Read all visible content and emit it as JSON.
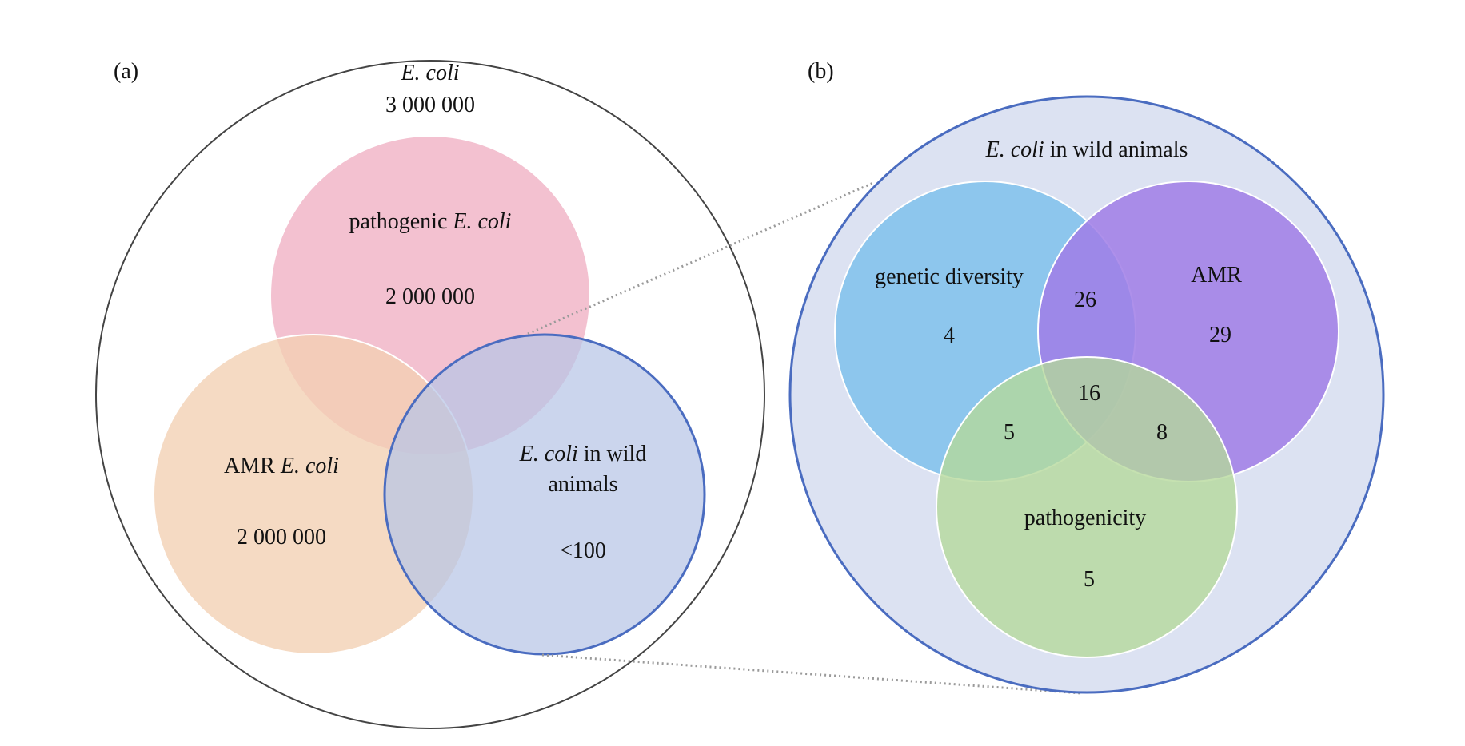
{
  "panel_a": {
    "panel_label": "(a)",
    "outer_title": "E. coli",
    "outer_count": "3 000 000",
    "pathogenic": {
      "label_pre": "pathogenic ",
      "label_it": "E. coli",
      "count": "2 000 000"
    },
    "amr": {
      "label_pre": "AMR ",
      "label_it": "E. coli",
      "count": "2 000 000"
    },
    "wild": {
      "label_it": "E. coli",
      "label_post": " in wild",
      "label_line2": "animals",
      "count": "<100"
    }
  },
  "panel_b": {
    "panel_label": "(b)",
    "title_it": "E. coli",
    "title_post": " in wild animals",
    "genetic_diversity": {
      "label": "genetic diversity",
      "count": "4"
    },
    "amr": {
      "label": "AMR",
      "count": "29"
    },
    "pathogenicity": {
      "label": "pathogenicity",
      "count": "5"
    },
    "gd_amr": "26",
    "all_three": "16",
    "gd_path": "5",
    "amr_path": "8"
  },
  "colors": {
    "pathogenic": "#F0B3C6",
    "amr_a": "#F2CFB2",
    "wild": "#C3CFE8",
    "wild_border": "#4A6CC0",
    "panel_b_bg": "#DCE2F2",
    "gd": "#7FC1EC",
    "amr_b": "#A07CE6",
    "pathogenicity": "#B5D89A"
  }
}
